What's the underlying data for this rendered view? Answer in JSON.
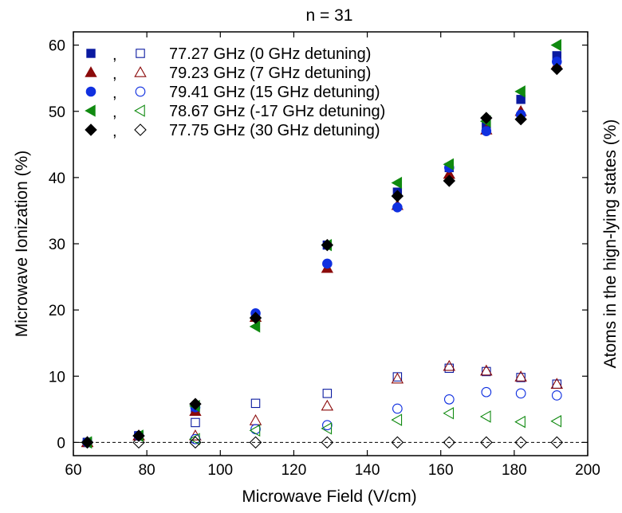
{
  "chart_data": {
    "type": "scatter",
    "title": "n = 31",
    "xlabel": "Microwave Field (V/cm)",
    "ylabel": "Microwave Ionization (%)",
    "ylabel_right": "Atoms in the hign-lying states (%)",
    "xlim": [
      60,
      200
    ],
    "ylim": [
      -2,
      62
    ],
    "xticks": [
      60,
      80,
      100,
      120,
      140,
      160,
      180,
      200
    ],
    "yticks": [
      0,
      10,
      20,
      30,
      40,
      50,
      60
    ],
    "reference_line": {
      "y": 0,
      "style": "dashed"
    },
    "legend_position": "top-left",
    "legend_separator": ",",
    "x": [
      63.8,
      77.8,
      93.2,
      109.6,
      129.1,
      148.2,
      162.3,
      172.4,
      181.8,
      191.6
    ],
    "series": [
      {
        "name": "77.27 GHz (0 GHz detuning)",
        "color": "#0a1aa0",
        "marker": "square",
        "ionization": [
          0,
          1.0,
          5.2,
          19.0,
          29.8,
          37.8,
          41.5,
          48.0,
          51.8,
          58.4
        ],
        "high_lying": [
          0,
          1.0,
          3.0,
          5.9,
          7.4,
          9.9,
          11.2,
          10.7,
          9.8,
          8.8
        ]
      },
      {
        "name": "79.23 GHz (7 GHz detuning)",
        "color": "#8b0a0a",
        "marker": "triangle-up",
        "ionization": [
          0,
          1.0,
          4.7,
          18.9,
          26.3,
          35.8,
          40.5,
          47.2,
          50.0,
          57.0
        ],
        "high_lying": [
          0,
          1.0,
          1.0,
          3.3,
          5.5,
          9.6,
          11.5,
          10.8,
          9.9,
          8.8
        ]
      },
      {
        "name": "79.41 GHz (15 GHz detuning)",
        "color": "#1030e0",
        "marker": "circle",
        "ionization": [
          0,
          1.0,
          5.3,
          19.5,
          27.0,
          35.5,
          41.5,
          47.0,
          49.5,
          57.5
        ],
        "high_lying": [
          0,
          1.0,
          0.5,
          2.0,
          2.6,
          5.1,
          6.5,
          7.6,
          7.4,
          7.1
        ]
      },
      {
        "name": "78.67 GHz (-17 GHz detuning)",
        "color": "#108a10",
        "marker": "triangle-left",
        "ionization": [
          0,
          1.0,
          5.5,
          17.5,
          29.8,
          39.2,
          42.0,
          48.5,
          53.0,
          60.0
        ],
        "high_lying": [
          0,
          1.0,
          0.5,
          1.8,
          2.1,
          3.4,
          4.4,
          3.9,
          3.1,
          3.2
        ]
      },
      {
        "name": "77.75 GHz (30 GHz detuning)",
        "color": "#000000",
        "marker": "diamond",
        "ionization": [
          0,
          1.0,
          5.8,
          18.8,
          29.8,
          37.2,
          39.5,
          49.0,
          48.8,
          56.4
        ],
        "high_lying": [
          0,
          0,
          0,
          0,
          0,
          0,
          0,
          0,
          0,
          0
        ]
      }
    ]
  }
}
